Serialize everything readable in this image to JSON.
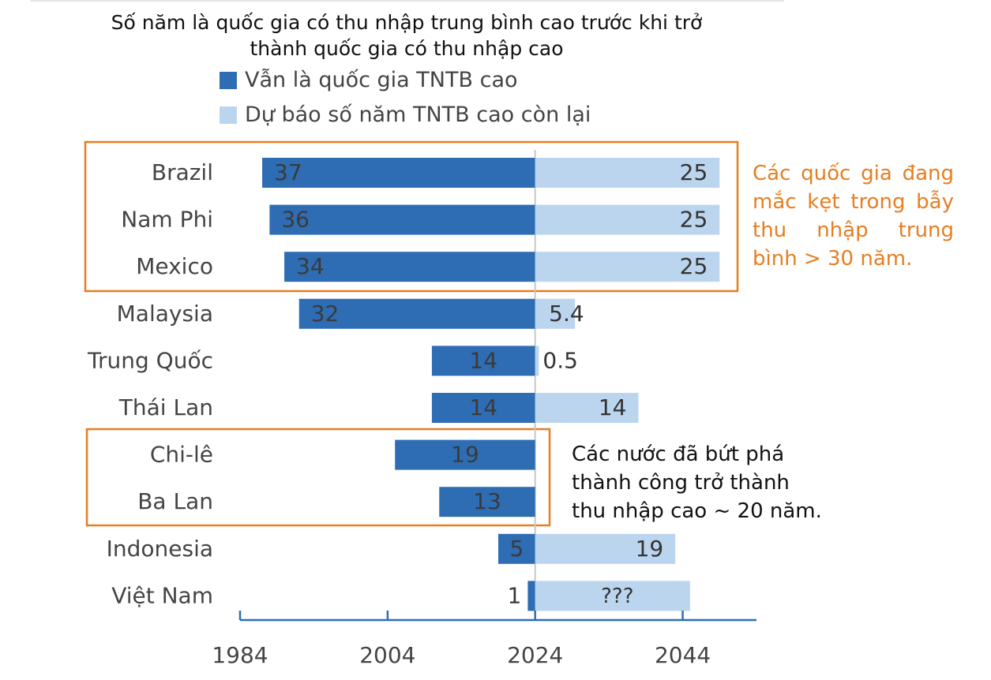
{
  "chart_data": {
    "type": "bar",
    "orientation": "horizontal-diverging",
    "title_lines": [
      "Số năm là quốc gia có thu nhập trung bình cao trước khi trở",
      "thành quốc gia có thu nhập cao"
    ],
    "legend": [
      {
        "name": "Vẫn là quốc gia TNTB cao",
        "color": "#2e6db4"
      },
      {
        "name": "Dự báo số năm TNTB cao còn lại",
        "color": "#bcd5ee"
      }
    ],
    "categories": [
      "Brazil",
      "Nam Phi",
      "Mexico",
      "Malaysia",
      "Trung Quốc",
      "Thái Lan",
      "Chi-lê",
      "Ba Lan",
      "Indonesia",
      "Việt Nam"
    ],
    "series": [
      {
        "name": "Vẫn là quốc gia TNTB cao",
        "values": [
          37,
          36,
          34,
          32,
          14,
          14,
          19,
          13,
          5,
          1
        ],
        "labels": [
          "37",
          "36",
          "34",
          "32",
          "14",
          "14",
          "19",
          "13",
          "5",
          "1"
        ],
        "color": "#2e6db4"
      },
      {
        "name": "Dự báo số năm TNTB cao còn lại",
        "values": [
          25,
          25,
          25,
          5.4,
          0.5,
          14,
          null,
          null,
          19,
          21
        ],
        "labels": [
          "25",
          "25",
          "25",
          "5.4",
          "0.5",
          "14",
          "",
          "",
          "19",
          "???"
        ],
        "color": "#bcd5ee"
      }
    ],
    "reference_year": 2024,
    "x_ticks": [
      1984,
      2004,
      2024,
      2044
    ],
    "xlim": [
      1984,
      2054
    ]
  },
  "annotations": {
    "trapped": [
      "Các quốc gia đang",
      "mắc kẹt trong bẫy",
      "thu nhập trung",
      "bình > 30 năm."
    ],
    "escaped": [
      "Các nước đã bứt phá",
      "thành công trở thành",
      "thu nhập cao ~ 20 năm."
    ]
  },
  "colors": {
    "accent": "#e67e22",
    "dark": "#2e6db4",
    "light": "#bcd5ee",
    "axis": "#2e6db4"
  }
}
